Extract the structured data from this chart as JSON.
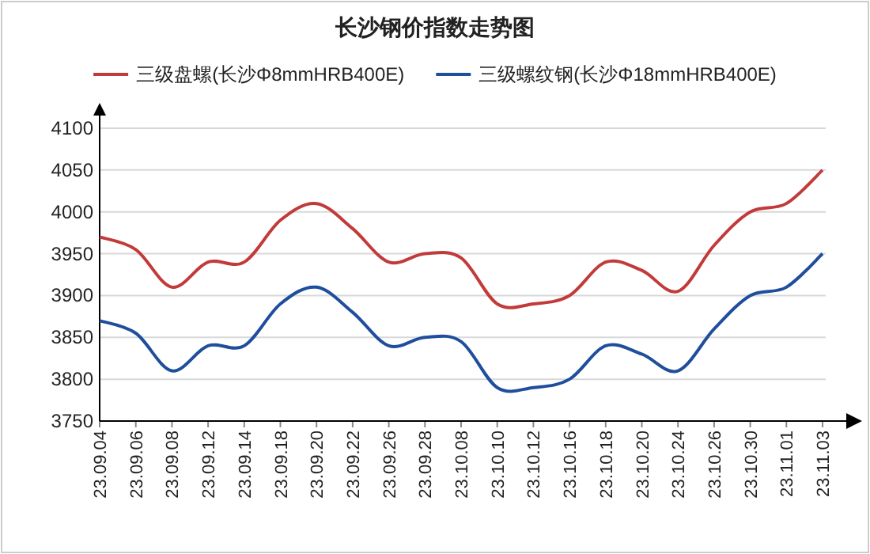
{
  "chart_data": {
    "type": "line",
    "title": "长沙钢价指数走势图",
    "categories": [
      "23.09.04",
      "23.09.06",
      "23.09.08",
      "23.09.12",
      "23.09.14",
      "23.09.18",
      "23.09.20",
      "23.09.22",
      "23.09.26",
      "23.09.28",
      "23.10.08",
      "23.10.10",
      "23.10.12",
      "23.10.16",
      "23.10.18",
      "23.10.20",
      "23.10.24",
      "23.10.26",
      "23.10.30",
      "23.11.01",
      "23.11.03"
    ],
    "series": [
      {
        "name": "三级盘螺(长沙Φ8mmHRB400E)",
        "color": "#c23b3b",
        "values": [
          3970,
          3955,
          3910,
          3940,
          3940,
          3990,
          4010,
          3980,
          3940,
          3950,
          3945,
          3890,
          3890,
          3900,
          3940,
          3930,
          3905,
          3960,
          4000,
          4010,
          4050
        ]
      },
      {
        "name": "三级螺纹钢(长沙Φ18mmHRB400E)",
        "color": "#1f4e9c",
        "values": [
          3870,
          3855,
          3810,
          3840,
          3840,
          3890,
          3910,
          3880,
          3840,
          3850,
          3845,
          3790,
          3790,
          3800,
          3840,
          3830,
          3810,
          3860,
          3900,
          3910,
          3950
        ]
      }
    ],
    "ylim": [
      3750,
      4100
    ],
    "yticks": [
      3750,
      3800,
      3850,
      3900,
      3950,
      4000,
      4050,
      4100
    ],
    "grid": "y",
    "legend": "top"
  }
}
